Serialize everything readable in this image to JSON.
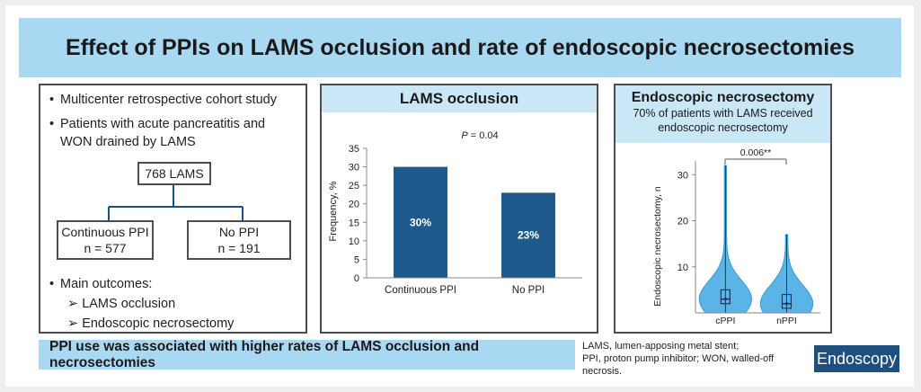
{
  "title": "Effect of PPIs on LAMS occlusion and rate of endoscopic necrosectomies",
  "left": {
    "bullets": [
      "Multicenter retrospective cohort study",
      "Patients with acute pancreatitis and WON drained by LAMS"
    ],
    "root": "768 LAMS",
    "cohort_a": {
      "name": "Continuous PPI",
      "n": "n = 577"
    },
    "cohort_b": {
      "name": "No PPI",
      "n": "n = 191"
    },
    "outcomes_title": "Main outcomes:",
    "outcomes": [
      "LAMS occlusion",
      "Endoscopic necrosectomy"
    ]
  },
  "mid": {
    "heading": "LAMS occlusion",
    "pvalue_label": "P",
    "pvalue_rest": " = 0.04"
  },
  "right": {
    "heading": "Endoscopic necrosectomy",
    "subtitle_line1": "70% of patients with LAMS received",
    "subtitle_line2": "endoscopic necrosectomy",
    "pvalue": "0.006**"
  },
  "footer": "PPI use was associated with higher rates of LAMS occlusion and necrosectomies",
  "footnote_line1": "LAMS, lumen-apposing metal stent;",
  "footnote_line2": "PPI, proton pump inhibitor; WON, walled-off necrosis.",
  "brand": "Endoscopy",
  "colors": {
    "bar": "#1e5a8c",
    "violin": "#5ab4e5",
    "header": "#a9d8f3",
    "subheader": "#c9e7f7"
  },
  "chart_data": [
    {
      "type": "bar",
      "categories": [
        "Continuous PPI",
        "No PPI"
      ],
      "values": [
        30,
        23
      ],
      "value_labels": [
        "30%",
        "23%"
      ],
      "ylabel": "Frequency, %",
      "ylim": [
        0,
        35
      ],
      "yticks": [
        0,
        5,
        10,
        15,
        20,
        25,
        30,
        35
      ],
      "grid": false
    },
    {
      "type": "violin",
      "categories": [
        "cPPI",
        "nPPI"
      ],
      "ylabel": "Endoscopic necrosectomy, n",
      "ylim": [
        0,
        33
      ],
      "yticks": [
        10,
        20,
        30
      ],
      "series": [
        {
          "category": "cPPI",
          "min": 0,
          "q1": 2,
          "median": 3,
          "q3": 5,
          "max": 32
        },
        {
          "category": "nPPI",
          "min": 0,
          "q1": 1,
          "median": 2,
          "q3": 4,
          "max": 17
        }
      ]
    }
  ]
}
